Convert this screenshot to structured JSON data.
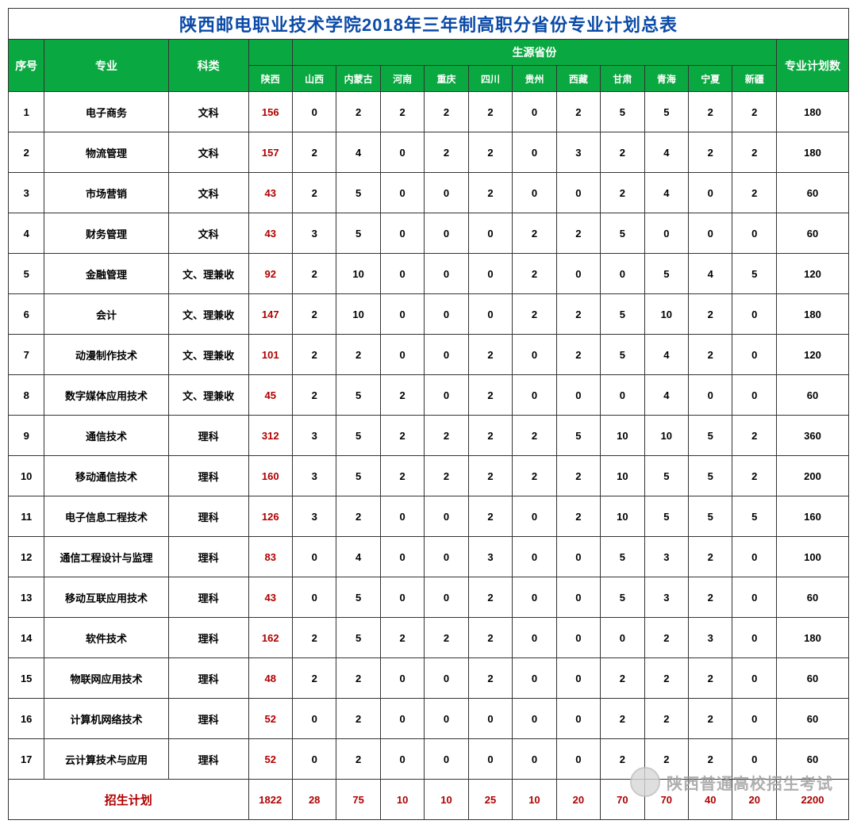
{
  "title": "陕西邮电职业技术学院2018年三年制高职分省份专业计划总表",
  "headers": {
    "seq": "序号",
    "major": "专业",
    "category": "科类",
    "source_group": "生源省份",
    "total": "专业计划数",
    "provinces": [
      "陕西",
      "山西",
      "内蒙古",
      "河南",
      "重庆",
      "四川",
      "贵州",
      "西藏",
      "甘肃",
      "青海",
      "宁夏",
      "新疆"
    ]
  },
  "categories": {
    "wen": "文科",
    "wenli": "文、理兼收",
    "li": "理科"
  },
  "rows": [
    {
      "seq": "1",
      "major": "电子商务",
      "cat": "wen",
      "vals": [
        "156",
        "0",
        "2",
        "2",
        "2",
        "2",
        "0",
        "2",
        "5",
        "5",
        "2",
        "2"
      ],
      "total": "180"
    },
    {
      "seq": "2",
      "major": "物流管理",
      "cat": "wen",
      "vals": [
        "157",
        "2",
        "4",
        "0",
        "2",
        "2",
        "0",
        "3",
        "2",
        "4",
        "2",
        "2"
      ],
      "total": "180"
    },
    {
      "seq": "3",
      "major": "市场营销",
      "cat": "wen",
      "vals": [
        "43",
        "2",
        "5",
        "0",
        "0",
        "2",
        "0",
        "0",
        "2",
        "4",
        "0",
        "2"
      ],
      "total": "60"
    },
    {
      "seq": "4",
      "major": "财务管理",
      "cat": "wen",
      "vals": [
        "43",
        "3",
        "5",
        "0",
        "0",
        "0",
        "2",
        "2",
        "5",
        "0",
        "0",
        "0"
      ],
      "total": "60"
    },
    {
      "seq": "5",
      "major": "金融管理",
      "cat": "wenli",
      "vals": [
        "92",
        "2",
        "10",
        "0",
        "0",
        "0",
        "2",
        "0",
        "0",
        "5",
        "4",
        "5"
      ],
      "total": "120"
    },
    {
      "seq": "6",
      "major": "会计",
      "cat": "wenli",
      "vals": [
        "147",
        "2",
        "10",
        "0",
        "0",
        "0",
        "2",
        "2",
        "5",
        "10",
        "2",
        "0"
      ],
      "total": "180"
    },
    {
      "seq": "7",
      "major": "动漫制作技术",
      "cat": "wenli",
      "vals": [
        "101",
        "2",
        "2",
        "0",
        "0",
        "2",
        "0",
        "2",
        "5",
        "4",
        "2",
        "0"
      ],
      "total": "120"
    },
    {
      "seq": "8",
      "major": "数字媒体应用技术",
      "cat": "wenli",
      "vals": [
        "45",
        "2",
        "5",
        "2",
        "0",
        "2",
        "0",
        "0",
        "0",
        "4",
        "0",
        "0"
      ],
      "total": "60"
    },
    {
      "seq": "9",
      "major": "通信技术",
      "cat": "li",
      "vals": [
        "312",
        "3",
        "5",
        "2",
        "2",
        "2",
        "2",
        "5",
        "10",
        "10",
        "5",
        "2"
      ],
      "total": "360"
    },
    {
      "seq": "10",
      "major": "移动通信技术",
      "cat": "li",
      "vals": [
        "160",
        "3",
        "5",
        "2",
        "2",
        "2",
        "2",
        "2",
        "10",
        "5",
        "5",
        "2"
      ],
      "total": "200"
    },
    {
      "seq": "11",
      "major": "电子信息工程技术",
      "cat": "li",
      "vals": [
        "126",
        "3",
        "2",
        "0",
        "0",
        "2",
        "0",
        "2",
        "10",
        "5",
        "5",
        "5"
      ],
      "total": "160"
    },
    {
      "seq": "12",
      "major": "通信工程设计与监理",
      "cat": "li",
      "vals": [
        "83",
        "0",
        "4",
        "0",
        "0",
        "3",
        "0",
        "0",
        "5",
        "3",
        "2",
        "0"
      ],
      "total": "100"
    },
    {
      "seq": "13",
      "major": "移动互联应用技术",
      "cat": "li",
      "vals": [
        "43",
        "0",
        "5",
        "0",
        "0",
        "2",
        "0",
        "0",
        "5",
        "3",
        "2",
        "0"
      ],
      "total": "60"
    },
    {
      "seq": "14",
      "major": "软件技术",
      "cat": "li",
      "vals": [
        "162",
        "2",
        "5",
        "2",
        "2",
        "2",
        "0",
        "0",
        "0",
        "2",
        "3",
        "0"
      ],
      "total": "180"
    },
    {
      "seq": "15",
      "major": "物联网应用技术",
      "cat": "li",
      "vals": [
        "48",
        "2",
        "2",
        "0",
        "0",
        "2",
        "0",
        "0",
        "2",
        "2",
        "2",
        "0"
      ],
      "total": "60"
    },
    {
      "seq": "16",
      "major": "计算机网络技术",
      "cat": "li",
      "vals": [
        "52",
        "0",
        "2",
        "0",
        "0",
        "0",
        "0",
        "0",
        "2",
        "2",
        "2",
        "0"
      ],
      "total": "60"
    },
    {
      "seq": "17",
      "major": "云计算技术与应用",
      "cat": "li",
      "vals": [
        "52",
        "0",
        "2",
        "0",
        "0",
        "0",
        "0",
        "0",
        "2",
        "2",
        "2",
        "0"
      ],
      "total": "60"
    }
  ],
  "footer": {
    "label": "招生计划",
    "vals": [
      "1822",
      "28",
      "75",
      "10",
      "10",
      "25",
      "10",
      "20",
      "70",
      "70",
      "40",
      "20"
    ],
    "total": "2200"
  },
  "watermark_text": "陕西普通高校招生考试",
  "colors": {
    "title_text": "#0a4aa8",
    "header_bg": "#0aa840",
    "header_text": "#ffffff",
    "category_bg": "#8bcb4b",
    "border": "#333333",
    "shaanxi_text": "#b00000",
    "footer_text": "#b00000",
    "cell_bg": "#ffffff",
    "watermark_text_color": "#9a9a9a"
  },
  "col_widths": {
    "seq": 45,
    "major": 155,
    "category": 100,
    "province": 55,
    "total": 90
  },
  "fonts": {
    "title_size": 22,
    "header_size": 14,
    "subheader_size": 12,
    "cell_size": 13,
    "footer_label_size": 15
  }
}
